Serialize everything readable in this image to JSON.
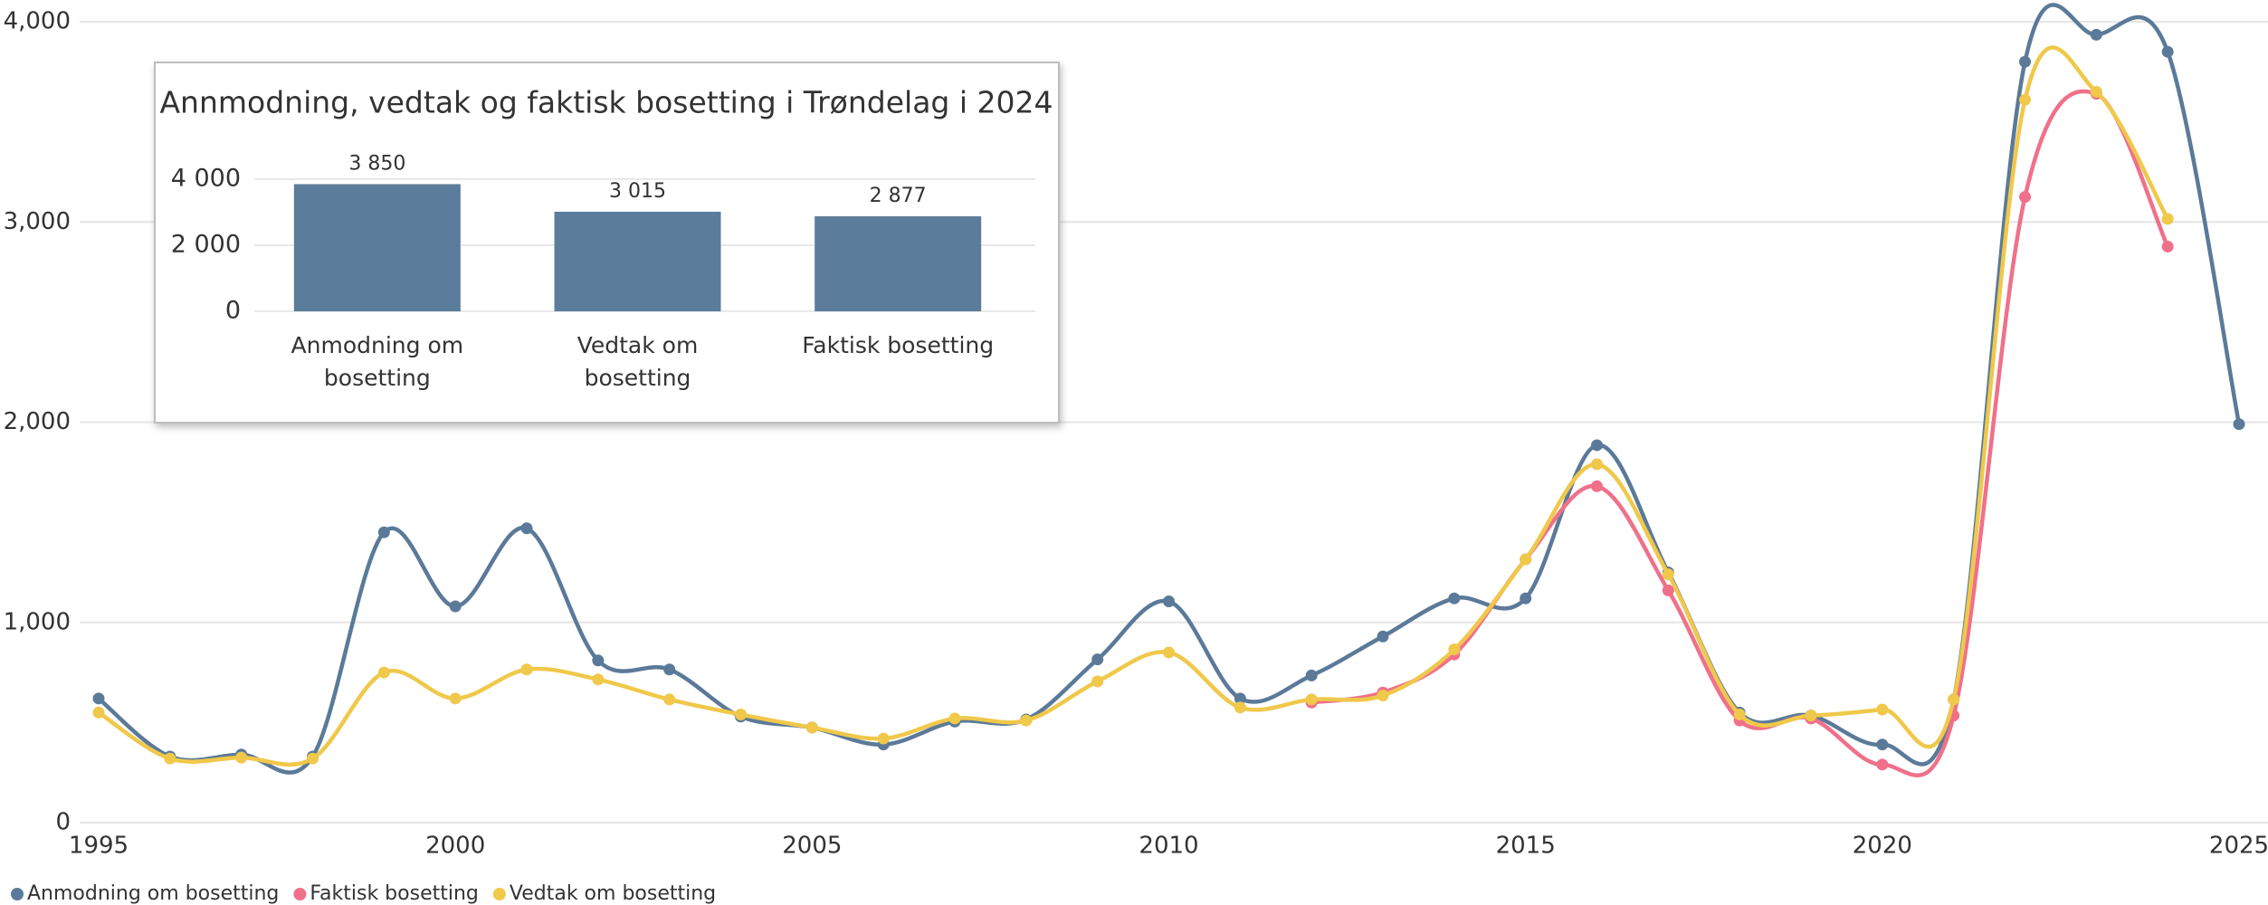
{
  "chart_data": [
    {
      "type": "line",
      "x": [
        1995,
        1996,
        1997,
        1998,
        1999,
        2000,
        2001,
        2002,
        2003,
        2004,
        2005,
        2006,
        2007,
        2008,
        2009,
        2010,
        2011,
        2012,
        2013,
        2014,
        2015,
        2016,
        2017,
        2018,
        2019,
        2020,
        2021,
        2022,
        2023,
        2024,
        2025
      ],
      "series": [
        {
          "name": "Anmodning om bosetting",
          "color": "#5b7a99",
          "values": [
            620,
            330,
            340,
            330,
            1450,
            1080,
            1470,
            810,
            765,
            530,
            475,
            390,
            505,
            515,
            815,
            1105,
            620,
            735,
            930,
            1120,
            1120,
            1885,
            1250,
            550,
            535,
            390,
            615,
            3800,
            3935,
            3850,
            1990
          ]
        },
        {
          "name": "Faktisk bosetting",
          "color": "#f0708a",
          "values": [
            null,
            null,
            null,
            null,
            null,
            null,
            null,
            null,
            null,
            null,
            null,
            null,
            null,
            null,
            null,
            null,
            null,
            600,
            650,
            840,
            1315,
            1680,
            1160,
            510,
            520,
            290,
            535,
            3125,
            3640,
            2877,
            null
          ]
        },
        {
          "name": "Vedtak om bosetting",
          "color": "#f0c84a",
          "values": [
            550,
            320,
            325,
            320,
            750,
            620,
            765,
            715,
            615,
            540,
            475,
            420,
            520,
            510,
            705,
            850,
            575,
            615,
            635,
            865,
            1315,
            1790,
            1240,
            540,
            535,
            565,
            615,
            3610,
            3650,
            3015,
            null
          ]
        }
      ],
      "xlim": [
        1995,
        2025
      ],
      "xticks": [
        1995,
        2000,
        2005,
        2010,
        2015,
        2020,
        2025
      ],
      "ylim": [
        0,
        4000
      ],
      "yticks": [
        0,
        {
          "value": 1000,
          "label": "1,000"
        },
        {
          "value": 2000,
          "label": "2,000"
        },
        {
          "value": 3000,
          "label": "3,000"
        },
        {
          "value": 4000,
          "label": "4,000"
        }
      ],
      "grid": true,
      "legend": "bottom-left"
    },
    {
      "type": "bar",
      "title": "Annmodning, vedtak og faktisk bosetting i Trøndelag i 2024",
      "categories": [
        "Anmodning om bosetting",
        "Vedtak om bosetting",
        "Faktisk bosetting"
      ],
      "values": [
        3850,
        3015,
        2877
      ],
      "value_labels": [
        "3 850",
        "3 015",
        "2 877"
      ],
      "color": "#5b7d9b",
      "ylim": [
        0,
        4000
      ],
      "yticks": [
        0,
        {
          "value": 2000,
          "label": "2 000"
        },
        {
          "value": 4000,
          "label": "4 000"
        }
      ],
      "grid": true
    }
  ]
}
